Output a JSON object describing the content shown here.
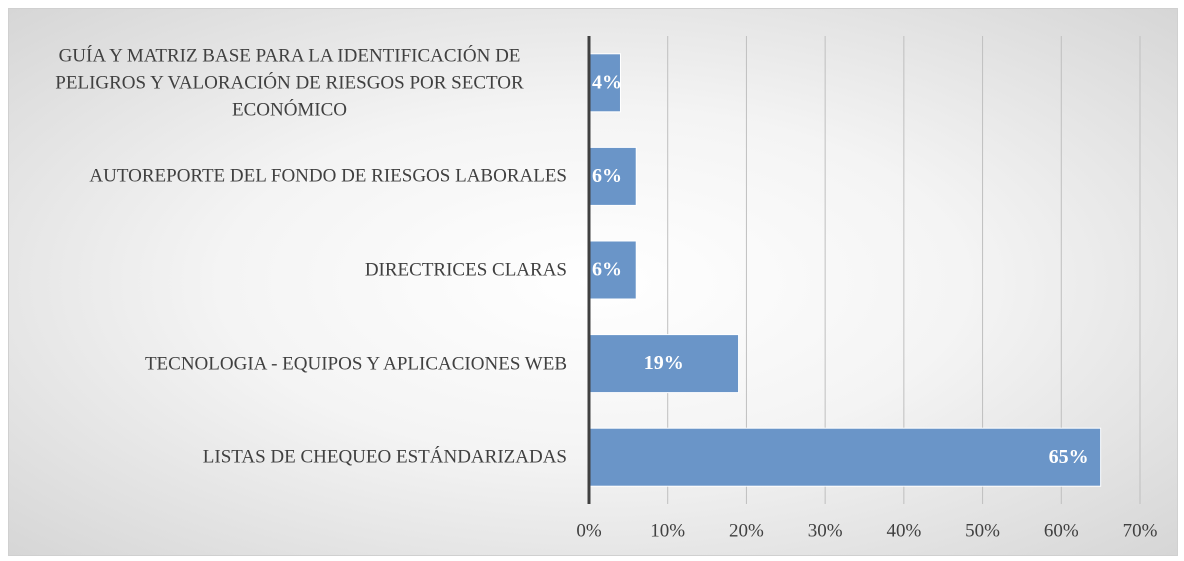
{
  "chart_data": {
    "type": "barh",
    "categories": [
      "GUÍA Y MATRIZ BASE PARA LA IDENTIFICACIÓN DE PELIGROS Y VALORACIÓN DE RIESGOS POR SECTOR ECONÓMICO",
      "AUTOREPORTE DEL FONDO DE RIESGOS LABORALES",
      "DIRECTRICES CLARAS",
      "TECNOLOGIA - EQUIPOS Y APLICACIONES WEB",
      "LISTAS DE CHEQUEO ESTÁNDARIZADAS"
    ],
    "values": [
      4,
      6,
      6,
      19,
      65
    ],
    "value_labels": [
      "4%",
      "6%",
      "6%",
      "19%",
      "65%"
    ],
    "color": "#6a95c8",
    "xlim": [
      0,
      70
    ],
    "xticks": [
      {
        "value": 0,
        "label": "0%"
      },
      {
        "value": 10,
        "label": "10%"
      },
      {
        "value": 20,
        "label": "20%"
      },
      {
        "value": 30,
        "label": "30%"
      },
      {
        "value": 40,
        "label": "40%"
      },
      {
        "value": 50,
        "label": "50%"
      },
      {
        "value": 60,
        "label": "60%"
      },
      {
        "value": 70,
        "label": "70%"
      }
    ],
    "grid": true
  }
}
